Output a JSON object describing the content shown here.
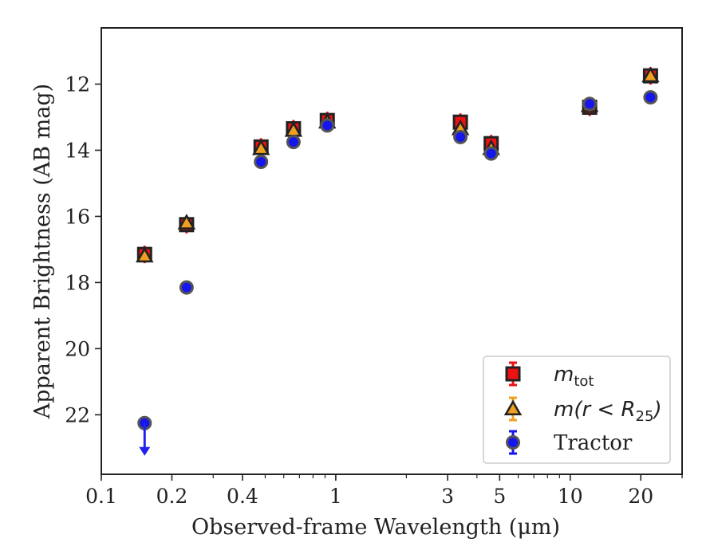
{
  "chart_data": {
    "type": "scatter",
    "xlabel": "Observed-frame Wavelength (μm)",
    "ylabel": "Apparent Brightness (AB mag)",
    "x_scale": "log",
    "xlim": [
      0.1,
      30
    ],
    "ylim": [
      23.8,
      10.3
    ],
    "y_inverted": true,
    "x_ticks": [
      {
        "value": 0.1,
        "label": "0.1"
      },
      {
        "value": 0.2,
        "label": "0.2"
      },
      {
        "value": 0.4,
        "label": "0.4"
      },
      {
        "value": 1,
        "label": "1"
      },
      {
        "value": 3,
        "label": "3"
      },
      {
        "value": 5,
        "label": "5"
      },
      {
        "value": 10,
        "label": "10"
      },
      {
        "value": 20,
        "label": "20"
      }
    ],
    "y_ticks": [
      {
        "value": 12,
        "label": "12"
      },
      {
        "value": 14,
        "label": "14"
      },
      {
        "value": 16,
        "label": "16"
      },
      {
        "value": 18,
        "label": "18"
      },
      {
        "value": 20,
        "label": "20"
      },
      {
        "value": 22,
        "label": "22"
      }
    ],
    "grid": false,
    "legend_position": "bottom-right",
    "series": [
      {
        "label_main": "m",
        "label_sub": "tot",
        "marker": "square",
        "color": "#ee1111",
        "x": [
          0.153,
          0.231,
          0.48,
          0.66,
          0.92,
          3.4,
          4.6,
          12.1,
          22.0
        ],
        "y": [
          17.15,
          16.25,
          13.9,
          13.35,
          13.1,
          13.15,
          13.8,
          12.7,
          11.75
        ],
        "upper_limit": [
          false,
          false,
          false,
          false,
          false,
          false,
          false,
          false,
          false
        ]
      },
      {
        "label_main": "m(r < R",
        "label_sub": "25",
        "label_tail": ")",
        "marker": "triangle",
        "color": "#f0a020",
        "x": [
          0.153,
          0.231,
          0.48,
          0.66,
          0.92,
          3.4,
          4.6,
          12.1,
          22.0
        ],
        "y": [
          17.2,
          16.2,
          13.95,
          13.4,
          13.15,
          13.35,
          13.95,
          12.65,
          11.75
        ],
        "upper_limit": [
          false,
          false,
          false,
          false,
          false,
          false,
          false,
          false,
          false
        ]
      },
      {
        "name": "Tractor",
        "marker": "circle",
        "color": "#1515ee",
        "x": [
          0.153,
          0.231,
          0.48,
          0.66,
          0.92,
          3.4,
          4.6,
          12.1,
          22.0
        ],
        "y": [
          22.25,
          18.15,
          14.35,
          13.75,
          13.25,
          13.6,
          14.1,
          12.6,
          12.4
        ],
        "upper_limit": [
          true,
          false,
          false,
          false,
          false,
          false,
          false,
          false,
          false
        ]
      }
    ]
  }
}
